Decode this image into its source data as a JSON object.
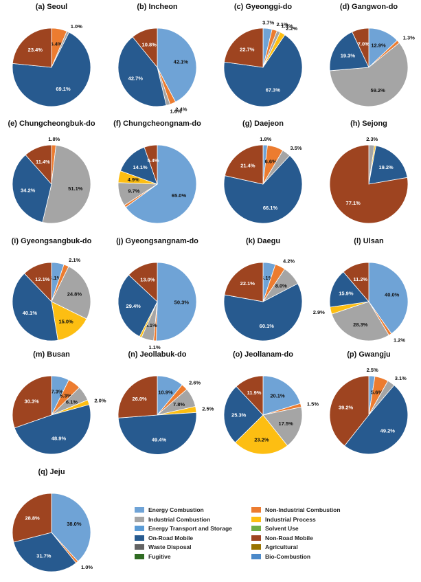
{
  "categories": [
    {
      "name": "Energy Combustion",
      "color": "#6fa3d6"
    },
    {
      "name": "Non-Industrial Combustion",
      "color": "#ec7c30"
    },
    {
      "name": "Industrial Combustion",
      "color": "#a5a5a5"
    },
    {
      "name": "Industrial Process",
      "color": "#fdbe12"
    },
    {
      "name": "Energy Transport and Storage",
      "color": "#5a9bd5"
    },
    {
      "name": "Solvent Use",
      "color": "#70ad47"
    },
    {
      "name": "On-Road Mobile",
      "color": "#275a8f"
    },
    {
      "name": "Non-Road Mobile",
      "color": "#9e4420"
    },
    {
      "name": "Waste Disposal",
      "color": "#636363"
    },
    {
      "name": "Agricultural",
      "color": "#997300"
    },
    {
      "name": "Fugitive",
      "color": "#2f6b22"
    },
    {
      "name": "Bio-Combustion",
      "color": "#4b89c9"
    }
  ],
  "chart_data": [
    {
      "type": "pie",
      "title": "(a) Seoul",
      "slices": [
        {
          "category": "Non-Industrial Combustion",
          "value": 6.4,
          "label": "6.4%"
        },
        {
          "category": "Industrial Combustion",
          "value": 1.0,
          "label": "1.0%"
        },
        {
          "category": "On-Road Mobile",
          "value": 69.1,
          "label": "69.1%"
        },
        {
          "category": "Non-Road Mobile",
          "value": 23.4,
          "label": "23.4%"
        }
      ]
    },
    {
      "type": "pie",
      "title": "(b) Incheon",
      "slices": [
        {
          "category": "Energy Combustion",
          "value": 42.1,
          "label": "42.1%"
        },
        {
          "category": "Non-Industrial Combustion",
          "value": 2.4,
          "label": "2.4%"
        },
        {
          "category": "Industrial Combustion",
          "value": 1.6,
          "label": "1.6%"
        },
        {
          "category": "On-Road Mobile",
          "value": 42.7,
          "label": "42.7%"
        },
        {
          "category": "Non-Road Mobile",
          "value": 10.8,
          "label": "10.8%"
        }
      ]
    },
    {
      "type": "pie",
      "title": "(c) Gyeonggi-do",
      "slices": [
        {
          "category": "Energy Combustion",
          "value": 3.7,
          "label": "3.7%"
        },
        {
          "category": "Non-Industrial Combustion",
          "value": 2.1,
          "label": "2.1%"
        },
        {
          "category": "Industrial Combustion",
          "value": 1.4,
          "label": "1.4%"
        },
        {
          "category": "Industrial Process",
          "value": 2.2,
          "label": "2.2%"
        },
        {
          "category": "On-Road Mobile",
          "value": 67.3,
          "label": "67.3%"
        },
        {
          "category": "Non-Road Mobile",
          "value": 22.7,
          "label": "22.7%"
        }
      ]
    },
    {
      "type": "pie",
      "title": "(d) Gangwon-do",
      "slices": [
        {
          "category": "Energy Combustion",
          "value": 12.9,
          "label": "12.9%"
        },
        {
          "category": "Non-Industrial Combustion",
          "value": 1.3,
          "label": "1.3%"
        },
        {
          "category": "Industrial Combustion",
          "value": 59.2,
          "label": "59.2%"
        },
        {
          "category": "On-Road Mobile",
          "value": 19.3,
          "label": "19.3%"
        },
        {
          "category": "Non-Road Mobile",
          "value": 7.0,
          "label": "7.0%"
        }
      ]
    },
    {
      "type": "pie",
      "title": "(e) Chungcheongbuk-do",
      "slices": [
        {
          "category": "Non-Industrial Combustion",
          "value": 1.8,
          "label": "1.8%"
        },
        {
          "category": "Industrial Combustion",
          "value": 51.1,
          "label": "51.1%"
        },
        {
          "category": "On-Road Mobile",
          "value": 34.2,
          "label": "34.2%"
        },
        {
          "category": "Non-Road Mobile",
          "value": 11.4,
          "label": "11.4%"
        }
      ]
    },
    {
      "type": "pie",
      "title": "(f) Chungcheongnam-do",
      "slices": [
        {
          "category": "Energy Combustion",
          "value": 65.0,
          "label": "65.0%"
        },
        {
          "category": "Non-Industrial Combustion",
          "value": 1.0,
          "label": ""
        },
        {
          "category": "Industrial Combustion",
          "value": 9.7,
          "label": "9.7%"
        },
        {
          "category": "Industrial Process",
          "value": 4.9,
          "label": "4.9%"
        },
        {
          "category": "On-Road Mobile",
          "value": 14.1,
          "label": "14.1%"
        },
        {
          "category": "Non-Road Mobile",
          "value": 5.4,
          "label": "5.4%"
        }
      ]
    },
    {
      "type": "pie",
      "title": "(g) Daejeon",
      "slices": [
        {
          "category": "Energy Combustion",
          "value": 1.8,
          "label": "1.8%"
        },
        {
          "category": "Non-Industrial Combustion",
          "value": 6.6,
          "label": "6.6%"
        },
        {
          "category": "Industrial Combustion",
          "value": 3.5,
          "label": "3.5%"
        },
        {
          "category": "On-Road Mobile",
          "value": 66.1,
          "label": "66.1%"
        },
        {
          "category": "Non-Road Mobile",
          "value": 21.4,
          "label": "21.4%"
        }
      ]
    },
    {
      "type": "pie",
      "title": "(h) Sejong",
      "slices": [
        {
          "category": "Industrial Combustion",
          "value": 2.3,
          "label": "2.3%"
        },
        {
          "category": "Industrial Process",
          "value": 0.6,
          "label": ""
        },
        {
          "category": "On-Road Mobile",
          "value": 19.2,
          "label": "19.2%"
        },
        {
          "category": "Non-Road Mobile",
          "value": 77.1,
          "label": "77.1%"
        }
      ]
    },
    {
      "type": "pie",
      "title": "(i) Gyeongsangbuk-do",
      "slices": [
        {
          "category": "Energy Combustion",
          "value": 5.1,
          "label": "5.1%"
        },
        {
          "category": "Non-Industrial Combustion",
          "value": 2.1,
          "label": "2.1%"
        },
        {
          "category": "Industrial Combustion",
          "value": 24.8,
          "label": "24.8%"
        },
        {
          "category": "Industrial Process",
          "value": 15.0,
          "label": "15.0%"
        },
        {
          "category": "On-Road Mobile",
          "value": 40.1,
          "label": "40.1%"
        },
        {
          "category": "Non-Road Mobile",
          "value": 12.1,
          "label": "12.1%"
        }
      ]
    },
    {
      "type": "pie",
      "title": "(j) Gyeongsangnam-do",
      "slices": [
        {
          "category": "Energy Combustion",
          "value": 50.3,
          "label": "50.3%"
        },
        {
          "category": "Non-Industrial Combustion",
          "value": 1.1,
          "label": "1.1%"
        },
        {
          "category": "Industrial Combustion",
          "value": 5.1,
          "label": "5.1%"
        },
        {
          "category": "Industrial Process",
          "value": 0.9,
          "label": ""
        },
        {
          "category": "On-Road Mobile",
          "value": 29.4,
          "label": "29.4%"
        },
        {
          "category": "Non-Road Mobile",
          "value": 13.0,
          "label": "13.0%"
        }
      ]
    },
    {
      "type": "pie",
      "title": "(k) Daegu",
      "slices": [
        {
          "category": "Energy Combustion",
          "value": 5.1,
          "label": "5.1%"
        },
        {
          "category": "Non-Industrial Combustion",
          "value": 4.2,
          "label": "4.2%"
        },
        {
          "category": "Industrial Combustion",
          "value": 8.0,
          "label": "8.0%"
        },
        {
          "category": "On-Road Mobile",
          "value": 60.1,
          "label": "60.1%"
        },
        {
          "category": "Non-Road Mobile",
          "value": 22.1,
          "label": "22.1%"
        }
      ]
    },
    {
      "type": "pie",
      "title": "(l) Ulsan",
      "slices": [
        {
          "category": "Energy Combustion",
          "value": 40.0,
          "label": "40.0%"
        },
        {
          "category": "Non-Industrial Combustion",
          "value": 1.2,
          "label": "1.2%"
        },
        {
          "category": "Industrial Combustion",
          "value": 28.3,
          "label": "28.3%"
        },
        {
          "category": "Industrial Process",
          "value": 2.9,
          "label": "2.9%"
        },
        {
          "category": "On-Road Mobile",
          "value": 15.9,
          "label": "15.9%"
        },
        {
          "category": "Non-Road Mobile",
          "value": 11.2,
          "label": "11.2%"
        }
      ]
    },
    {
      "type": "pie",
      "title": "(m) Busan",
      "slices": [
        {
          "category": "Energy Combustion",
          "value": 7.3,
          "label": "7.3%"
        },
        {
          "category": "Non-Industrial Combustion",
          "value": 5.3,
          "label": "5.3%"
        },
        {
          "category": "Industrial Combustion",
          "value": 6.1,
          "label": "6.1%"
        },
        {
          "category": "Industrial Process",
          "value": 2.0,
          "label": "2.0%"
        },
        {
          "category": "On-Road Mobile",
          "value": 48.9,
          "label": "48.9%"
        },
        {
          "category": "Non-Road Mobile",
          "value": 30.3,
          "label": "30.3%"
        }
      ]
    },
    {
      "type": "pie",
      "title": "(n) Jeollabuk-do",
      "slices": [
        {
          "category": "Energy Combustion",
          "value": 10.9,
          "label": "10.9%"
        },
        {
          "category": "Non-Industrial Combustion",
          "value": 2.6,
          "label": "2.6%"
        },
        {
          "category": "Industrial Combustion",
          "value": 7.8,
          "label": "7.8%"
        },
        {
          "category": "Industrial Process",
          "value": 2.5,
          "label": "2.5%"
        },
        {
          "category": "On-Road Mobile",
          "value": 49.4,
          "label": "49.4%"
        },
        {
          "category": "Non-Road Mobile",
          "value": 26.0,
          "label": "26.0%"
        }
      ]
    },
    {
      "type": "pie",
      "title": "(o) Jeollanam-do",
      "slices": [
        {
          "category": "Energy Combustion",
          "value": 20.1,
          "label": "20.1%"
        },
        {
          "category": "Non-Industrial Combustion",
          "value": 1.5,
          "label": "1.5%"
        },
        {
          "category": "Industrial Combustion",
          "value": 17.5,
          "label": "17.5%"
        },
        {
          "category": "Industrial Process",
          "value": 23.2,
          "label": "23.2%"
        },
        {
          "category": "On-Road Mobile",
          "value": 25.3,
          "label": "25.3%"
        },
        {
          "category": "Non-Road Mobile",
          "value": 11.9,
          "label": "11.9%"
        }
      ]
    },
    {
      "type": "pie",
      "title": "(p) Gwangju",
      "slices": [
        {
          "category": "Energy Combustion",
          "value": 2.5,
          "label": "2.5%"
        },
        {
          "category": "Non-Industrial Combustion",
          "value": 5.6,
          "label": "5.6%"
        },
        {
          "category": "Industrial Combustion",
          "value": 3.1,
          "label": "3.1%"
        },
        {
          "category": "On-Road Mobile",
          "value": 49.2,
          "label": "49.2%"
        },
        {
          "category": "Non-Road Mobile",
          "value": 39.2,
          "label": "39.2%"
        }
      ]
    },
    {
      "type": "pie",
      "title": "(q) Jeju",
      "slices": [
        {
          "category": "Energy Combustion",
          "value": 38.0,
          "label": "38.0%"
        },
        {
          "category": "Non-Industrial Combustion",
          "value": 1.0,
          "label": "1.0%"
        },
        {
          "category": "On-Road Mobile",
          "value": 31.7,
          "label": "31.7%"
        },
        {
          "category": "Non-Road Mobile",
          "value": 28.8,
          "label": "28.8%"
        }
      ]
    }
  ]
}
